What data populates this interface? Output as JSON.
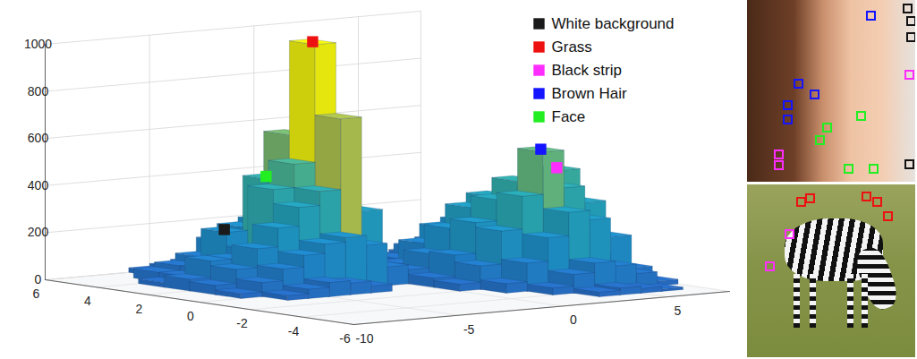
{
  "chart_data": {
    "type": "bar3d",
    "x_bins": [
      -10,
      -9,
      -8,
      -7,
      -6,
      -5,
      -4,
      -3,
      -2,
      -1,
      0,
      1,
      2,
      3,
      4,
      5,
      6,
      7,
      8
    ],
    "y_bins": [
      -6,
      -5,
      -4,
      -3,
      -2,
      -1,
      0,
      1,
      2,
      3,
      4,
      5,
      6
    ],
    "counts": [
      [
        0,
        0,
        0,
        0,
        0,
        0,
        0,
        0,
        0,
        0,
        0,
        0,
        0,
        0,
        0,
        0,
        0,
        0
      ],
      [
        0,
        0,
        0,
        0,
        0,
        0,
        0,
        0,
        0,
        0,
        0,
        0,
        0,
        20,
        30,
        20,
        10,
        0
      ],
      [
        0,
        0,
        0,
        0,
        0,
        0,
        0,
        0,
        0,
        0,
        0,
        0,
        30,
        80,
        120,
        100,
        60,
        20
      ],
      [
        0,
        0,
        0,
        0,
        0,
        0,
        0,
        0,
        0,
        0,
        0,
        40,
        120,
        220,
        320,
        280,
        200,
        60
      ],
      [
        0,
        0,
        0,
        0,
        0,
        0,
        0,
        0,
        0,
        0,
        30,
        100,
        240,
        380,
        560,
        400,
        330,
        90
      ],
      [
        0,
        0,
        0,
        20,
        40,
        60,
        50,
        30,
        0,
        0,
        40,
        130,
        260,
        350,
        420,
        380,
        450,
        100
      ],
      [
        0,
        0,
        20,
        60,
        110,
        160,
        200,
        220,
        180,
        80,
        60,
        120,
        220,
        300,
        340,
        290,
        250,
        60
      ],
      [
        0,
        0,
        40,
        100,
        180,
        260,
        340,
        400,
        700,
        300,
        60,
        60,
        140,
        200,
        220,
        180,
        120,
        30
      ],
      [
        0,
        0,
        50,
        120,
        120,
        150,
        400,
        500,
        1000,
        380,
        50,
        0,
        60,
        100,
        120,
        80,
        40,
        0
      ],
      [
        0,
        0,
        20,
        40,
        60,
        210,
        140,
        420,
        600,
        200,
        20,
        0,
        0,
        40,
        50,
        30,
        0,
        0
      ],
      [
        0,
        0,
        0,
        40,
        60,
        90,
        150,
        200,
        220,
        80,
        0,
        0,
        0,
        0,
        0,
        0,
        0,
        0
      ],
      [
        0,
        0,
        0,
        0,
        20,
        30,
        40,
        50,
        40,
        0,
        0,
        0,
        0,
        0,
        0,
        0,
        0,
        0
      ]
    ],
    "xlim": [
      -10,
      8
    ],
    "ylim": [
      -6,
      6
    ],
    "zlim": [
      0,
      1000
    ],
    "xticks": [
      -10,
      -5,
      0,
      5
    ],
    "yticks": [
      -6,
      -4,
      -2,
      0,
      2,
      4,
      6
    ],
    "zticks": [
      0,
      200,
      400,
      600,
      800,
      1000
    ],
    "grid": true,
    "legend": "top-right",
    "marker": "square",
    "markers": [
      {
        "name": "White background",
        "color": "#1a1a1a",
        "x": -4.5,
        "y": 3.5,
        "z": 210
      },
      {
        "name": "Grass",
        "color": "#ee1111",
        "x": -1.5,
        "y": 2.5,
        "z": 1000
      },
      {
        "name": "Black strip",
        "color": "#ff2cff",
        "x": 6.5,
        "y": -0.5,
        "z": 450
      },
      {
        "name": "Brown Hair",
        "color": "#1414ff",
        "x": 4.5,
        "y": -1.5,
        "z": 560
      },
      {
        "name": "Face",
        "color": "#22ee22",
        "x": -2.5,
        "y": 3.5,
        "z": 420
      }
    ]
  }
}
